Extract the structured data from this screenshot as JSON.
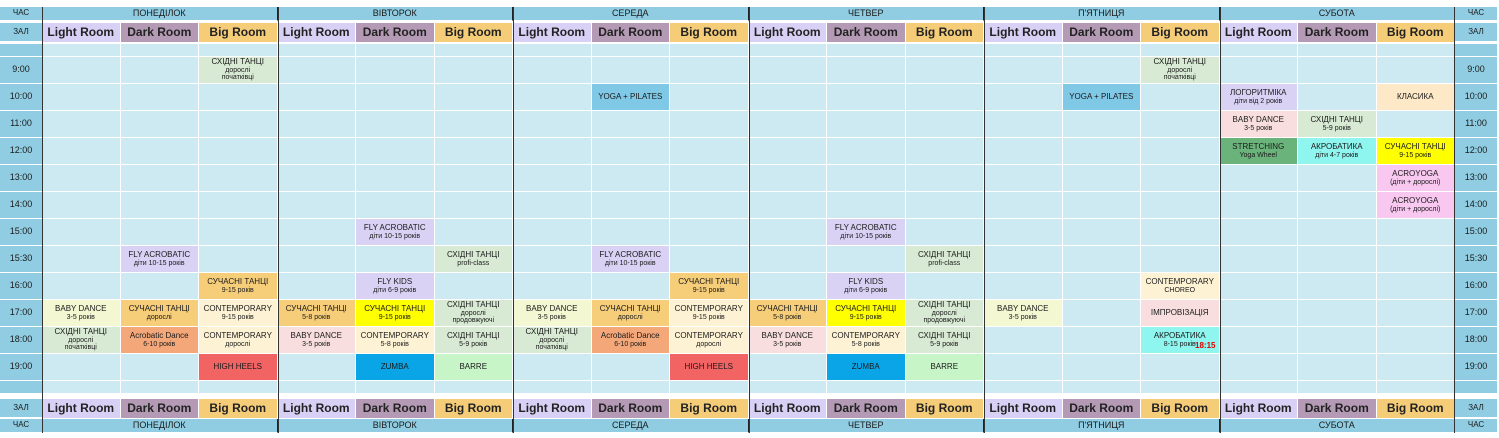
{
  "header": {
    "time_label": "ЧАС",
    "room_label": "ЗАЛ"
  },
  "days": [
    "ПОНЕДІЛОК",
    "ВІВТОРОК",
    "СЕРЕДА",
    "ЧЕТВЕР",
    "П'ЯТНИЦЯ",
    "СУБОТА"
  ],
  "rooms": [
    {
      "name": "Light Room",
      "color": "#d9d0f5"
    },
    {
      "name": "Dark Room",
      "color": "#b49ab5"
    },
    {
      "name": "Big Room",
      "color": "#f5cd79"
    }
  ],
  "times": [
    "",
    "9:00",
    "10:00",
    "11:00",
    "12:00",
    "13:00",
    "14:00",
    "15:00",
    "15:30",
    "16:00",
    "17:00",
    "18:00",
    "19:00",
    ""
  ],
  "classes": [
    {
      "day": 0,
      "room": 2,
      "row": 1,
      "span": 1,
      "lines": [
        "СХІДНІ ТАНЦІ",
        "дорослі",
        "початківці"
      ],
      "color": "#d8ead3"
    },
    {
      "day": 0,
      "room": 1,
      "row": 8,
      "span": 1,
      "lines": [
        "FLY ACROBATIC",
        "діти 10-15 років"
      ],
      "color": "#d9d2f5"
    },
    {
      "day": 0,
      "room": 2,
      "row": 9,
      "span": 1,
      "lines": [
        "СУЧАСНІ ТАНЦІ",
        "9-15 років"
      ],
      "color": "#f6cd79"
    },
    {
      "day": 0,
      "room": 0,
      "row": 10,
      "span": 1,
      "lines": [
        "BABY DANCE",
        "3-5 років"
      ],
      "color": "#f3f7d2"
    },
    {
      "day": 0,
      "room": 1,
      "row": 10,
      "span": 1,
      "lines": [
        "СУЧАСНІ ТАНЦІ",
        "дорослі"
      ],
      "color": "#f6cd79"
    },
    {
      "day": 0,
      "room": 2,
      "row": 10,
      "span": 1,
      "lines": [
        "CONTEMPORARY",
        "9-15 років"
      ],
      "color": "#fdf2d4"
    },
    {
      "day": 0,
      "room": 0,
      "row": 11,
      "span": 1,
      "lines": [
        "СХІДНІ ТАНЦІ",
        "дорослі",
        "початківці"
      ],
      "color": "#d8ead3"
    },
    {
      "day": 0,
      "room": 1,
      "row": 11,
      "span": 1,
      "lines": [
        "Acrobatic Dance",
        "6-10 років"
      ],
      "color": "#f4a87a"
    },
    {
      "day": 0,
      "room": 2,
      "row": 11,
      "span": 1,
      "lines": [
        "CONTEMPORARY",
        "дорослі"
      ],
      "color": "#fdf2d4"
    },
    {
      "day": 0,
      "room": 2,
      "row": 12,
      "span": 1,
      "lines": [
        "HIGH HEELS"
      ],
      "color": "#f26363"
    },
    {
      "day": 1,
      "room": 1,
      "row": 7,
      "span": 1,
      "lines": [
        "FLY ACROBATIC",
        "діти 10-15 років"
      ],
      "color": "#d9d2f5"
    },
    {
      "day": 1,
      "room": 2,
      "row": 8,
      "span": 1,
      "lines": [
        "СХІДНІ ТАНЦІ",
        "profi-class"
      ],
      "color": "#d8ead3"
    },
    {
      "day": 1,
      "room": 1,
      "row": 9,
      "span": 1,
      "lines": [
        "FLY KIDS",
        "діти 6-9 років"
      ],
      "color": "#d9d2f5"
    },
    {
      "day": 1,
      "room": 0,
      "row": 10,
      "span": 1,
      "lines": [
        "СУЧАСНІ ТАНЦІ",
        "5-8 років"
      ],
      "color": "#f6cd79"
    },
    {
      "day": 1,
      "room": 1,
      "row": 10,
      "span": 1,
      "lines": [
        "СУЧАСНІ ТАНЦІ",
        "9-15 років"
      ],
      "color": "#ffff00"
    },
    {
      "day": 1,
      "room": 2,
      "row": 10,
      "span": 1,
      "lines": [
        "СХІДНІ ТАНЦІ",
        "дорослі",
        "продовжуючі"
      ],
      "color": "#d8ead3"
    },
    {
      "day": 1,
      "room": 0,
      "row": 11,
      "span": 1,
      "lines": [
        "BABY DANCE",
        "3-5 років"
      ],
      "color": "#f8dede"
    },
    {
      "day": 1,
      "room": 1,
      "row": 11,
      "span": 1,
      "lines": [
        "CONTEMPORARY",
        "5-8 років"
      ],
      "color": "#fdf2d4"
    },
    {
      "day": 1,
      "room": 2,
      "row": 11,
      "span": 1,
      "lines": [
        "СХІДНІ ТАНЦІ",
        "5-9 років"
      ],
      "color": "#d8ead3"
    },
    {
      "day": 1,
      "room": 1,
      "row": 12,
      "span": 1,
      "lines": [
        "ZUMBA"
      ],
      "color": "#0aa5e6"
    },
    {
      "day": 1,
      "room": 2,
      "row": 12,
      "span": 1,
      "lines": [
        "BARRE"
      ],
      "color": "#c8f5c8"
    },
    {
      "day": 2,
      "room": 1,
      "row": 2,
      "span": 1,
      "lines": [
        "YOGA + PILATES"
      ],
      "color": "#7fc8e6"
    },
    {
      "day": 2,
      "room": 1,
      "row": 8,
      "span": 1,
      "lines": [
        "FLY ACROBATIC",
        "діти 10-15 років"
      ],
      "color": "#d9d2f5"
    },
    {
      "day": 2,
      "room": 2,
      "row": 9,
      "span": 1,
      "lines": [
        "СУЧАСНІ ТАНЦІ",
        "9-15 років"
      ],
      "color": "#f6cd79"
    },
    {
      "day": 2,
      "room": 0,
      "row": 10,
      "span": 1,
      "lines": [
        "BABY DANCE",
        "3-5 років"
      ],
      "color": "#f3f7d2"
    },
    {
      "day": 2,
      "room": 1,
      "row": 10,
      "span": 1,
      "lines": [
        "СУЧАСНІ ТАНЦІ",
        "дорослі"
      ],
      "color": "#f6cd79"
    },
    {
      "day": 2,
      "room": 2,
      "row": 10,
      "span": 1,
      "lines": [
        "CONTEMPORARY",
        "9-15 років"
      ],
      "color": "#fdf2d4"
    },
    {
      "day": 2,
      "room": 0,
      "row": 11,
      "span": 1,
      "lines": [
        "СХІДНІ ТАНЦІ",
        "дорослі",
        "початківці"
      ],
      "color": "#d8ead3"
    },
    {
      "day": 2,
      "room": 1,
      "row": 11,
      "span": 1,
      "lines": [
        "Acrobatic Dance",
        "6-10 років"
      ],
      "color": "#f4a87a"
    },
    {
      "day": 2,
      "room": 2,
      "row": 11,
      "span": 1,
      "lines": [
        "CONTEMPORARY",
        "дорослі"
      ],
      "color": "#fdf2d4"
    },
    {
      "day": 2,
      "room": 2,
      "row": 12,
      "span": 1,
      "lines": [
        "HIGH HEELS"
      ],
      "color": "#f26363"
    },
    {
      "day": 3,
      "room": 1,
      "row": 7,
      "span": 1,
      "lines": [
        "FLY ACROBATIC",
        "діти 10-15 років"
      ],
      "color": "#d9d2f5"
    },
    {
      "day": 3,
      "room": 2,
      "row": 8,
      "span": 1,
      "lines": [
        "СХІДНІ ТАНЦІ",
        "profi-class"
      ],
      "color": "#d8ead3"
    },
    {
      "day": 3,
      "room": 1,
      "row": 9,
      "span": 1,
      "lines": [
        "FLY KIDS",
        "діти 6-9 років"
      ],
      "color": "#d9d2f5"
    },
    {
      "day": 3,
      "room": 0,
      "row": 10,
      "span": 1,
      "lines": [
        "СУЧАСНІ ТАНЦІ",
        "5-8 років"
      ],
      "color": "#f6cd79"
    },
    {
      "day": 3,
      "room": 1,
      "row": 10,
      "span": 1,
      "lines": [
        "СУЧАСНІ ТАНЦІ",
        "9-15 років"
      ],
      "color": "#ffff00"
    },
    {
      "day": 3,
      "room": 2,
      "row": 10,
      "span": 1,
      "lines": [
        "СХІДНІ ТАНЦІ",
        "дорослі",
        "продовжуючі"
      ],
      "color": "#d8ead3"
    },
    {
      "day": 3,
      "room": 0,
      "row": 11,
      "span": 1,
      "lines": [
        "BABY DANCE",
        "3-5 років"
      ],
      "color": "#f8dede"
    },
    {
      "day": 3,
      "room": 1,
      "row": 11,
      "span": 1,
      "lines": [
        "CONTEMPORARY",
        "5-8 років"
      ],
      "color": "#fdf2d4"
    },
    {
      "day": 3,
      "room": 2,
      "row": 11,
      "span": 1,
      "lines": [
        "СХІДНІ ТАНЦІ",
        "5-9 років"
      ],
      "color": "#d8ead3"
    },
    {
      "day": 3,
      "room": 1,
      "row": 12,
      "span": 1,
      "lines": [
        "ZUMBA"
      ],
      "color": "#0aa5e6"
    },
    {
      "day": 3,
      "room": 2,
      "row": 12,
      "span": 1,
      "lines": [
        "BARRE"
      ],
      "color": "#c8f5c8"
    },
    {
      "day": 4,
      "room": 2,
      "row": 1,
      "span": 1,
      "lines": [
        "СХІДНІ ТАНЦІ",
        "дорослі",
        "початківці"
      ],
      "color": "#d8ead3"
    },
    {
      "day": 4,
      "room": 1,
      "row": 2,
      "span": 1,
      "lines": [
        "YOGA + PILATES"
      ],
      "color": "#7fc8e6"
    },
    {
      "day": 4,
      "room": 2,
      "row": 9,
      "span": 1,
      "lines": [
        "CONTEMPORARY",
        "CHOREO"
      ],
      "color": "#fdf2d4"
    },
    {
      "day": 4,
      "room": 0,
      "row": 10,
      "span": 1,
      "lines": [
        "BABY DANCE",
        "3-5 років"
      ],
      "color": "#f3f7d2"
    },
    {
      "day": 4,
      "room": 2,
      "row": 10,
      "span": 1,
      "lines": [
        "ІМПРОВІЗАЦІЯ"
      ],
      "color": "#f8dede"
    },
    {
      "day": 4,
      "room": 2,
      "row": 11,
      "span": 1,
      "lines": [
        "АКРОБАТИКА",
        "8-15 років"
      ],
      "color": "#8ff5ef",
      "badge": "18:15"
    },
    {
      "day": 5,
      "room": 0,
      "row": 2,
      "span": 1,
      "lines": [
        "ЛОГОРИТМІКА",
        "діти від 2 років"
      ],
      "color": "#d9d2f5"
    },
    {
      "day": 5,
      "room": 2,
      "row": 2,
      "span": 1,
      "lines": [
        "КЛАСИКА"
      ],
      "color": "#fde9c8"
    },
    {
      "day": 5,
      "room": 0,
      "row": 3,
      "span": 1,
      "lines": [
        "BABY DANCE",
        "3-5 років"
      ],
      "color": "#f8dede"
    },
    {
      "day": 5,
      "room": 1,
      "row": 3,
      "span": 1,
      "lines": [
        "СХІДНІ ТАНЦІ",
        "5-9 років"
      ],
      "color": "#d8ead3"
    },
    {
      "day": 5,
      "room": 0,
      "row": 4,
      "span": 1,
      "lines": [
        "STRETCHING",
        "Yoga Wheel"
      ],
      "color": "#6ab47c"
    },
    {
      "day": 5,
      "room": 1,
      "row": 4,
      "span": 1,
      "lines": [
        "АКРОБАТИКА",
        "діти 4-7 років"
      ],
      "color": "#8ff5ef"
    },
    {
      "day": 5,
      "room": 2,
      "row": 4,
      "span": 1,
      "lines": [
        "СУЧАСНІ ТАНЦІ",
        "9-15 років"
      ],
      "color": "#ffff00"
    },
    {
      "day": 5,
      "room": 2,
      "row": 5,
      "span": 1,
      "lines": [
        "ACROYOGA",
        "(діти + дорослі)"
      ],
      "color": "#f8c8f0"
    },
    {
      "day": 5,
      "room": 2,
      "row": 6,
      "span": 1,
      "lines": [
        "ACROYOGA",
        "(діти + дорослі)"
      ],
      "color": "#f8c8f0"
    }
  ]
}
